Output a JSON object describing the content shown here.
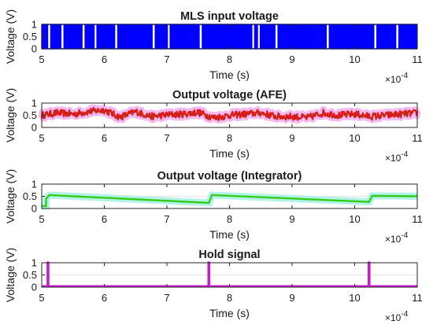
{
  "chart_data": [
    {
      "type": "line",
      "title": "MLS input voltage",
      "xlabel": "Time (s)",
      "ylabel": "Voltage (V)",
      "x_exponent_label": "×10",
      "x_exponent_power": "-4",
      "xlim": [
        5,
        11
      ],
      "ylim": [
        0,
        1
      ],
      "xticks": [
        "5",
        "6",
        "7",
        "8",
        "9",
        "10",
        "11"
      ],
      "yticks": [
        "0",
        "0.5",
        "1"
      ],
      "grid": false,
      "series": [
        {
          "color": "#0000ff",
          "signal": "binary-switching",
          "low": 0,
          "high": 1,
          "gaps_x": [
            5.12,
            5.33,
            5.67,
            5.86,
            6.19,
            6.79,
            7.03,
            7.54,
            8.38,
            8.47,
            8.75,
            9.57,
            10.33,
            10.68
          ]
        }
      ]
    },
    {
      "type": "line",
      "title": "Output voltage (AFE)",
      "xlabel": "Time (s)",
      "ylabel": "Voltage (V)",
      "x_exponent_label": "×10",
      "x_exponent_power": "-4",
      "xlim": [
        5,
        11
      ],
      "ylim": [
        0,
        1
      ],
      "xticks": [
        "5",
        "6",
        "7",
        "8",
        "9",
        "10",
        "11"
      ],
      "yticks": [
        "0",
        "0.5",
        "1"
      ],
      "grid": true,
      "series": [
        {
          "color": "#e6191a",
          "band_color": "#f7b8f0",
          "signal": "noisy",
          "x": [
            5,
            5.25,
            5.5,
            5.75,
            6,
            6.25,
            6.5,
            6.75,
            7,
            7.25,
            7.5,
            7.75,
            8,
            8.25,
            8.5,
            8.75,
            9,
            9.25,
            9.5,
            9.75,
            10,
            10.25,
            10.5,
            10.75,
            11
          ],
          "y": [
            0.5,
            0.6,
            0.55,
            0.65,
            0.72,
            0.42,
            0.65,
            0.45,
            0.52,
            0.55,
            0.62,
            0.4,
            0.5,
            0.55,
            0.6,
            0.45,
            0.45,
            0.4,
            0.6,
            0.5,
            0.55,
            0.45,
            0.5,
            0.55,
            0.6
          ]
        }
      ]
    },
    {
      "type": "line",
      "title": "Output voltage (Integrator)",
      "xlabel": "Time (s)",
      "ylabel": "Voltage (V)",
      "x_exponent_label": "×10",
      "x_exponent_power": "-4",
      "xlim": [
        5,
        11
      ],
      "ylim": [
        0,
        1
      ],
      "xticks": [
        "5",
        "6",
        "7",
        "8",
        "9",
        "10",
        "11"
      ],
      "yticks": [
        "0",
        "0.5",
        "1"
      ],
      "grid": true,
      "series": [
        {
          "color": "#33cc1a",
          "band_color": "#b3f2e6",
          "x": [
            5,
            5.07,
            5.07,
            5.12,
            7.67,
            7.67,
            7.72,
            10.23,
            10.23,
            10.28,
            11
          ],
          "y": [
            0.1,
            0.1,
            0.4,
            0.55,
            0.23,
            0.23,
            0.55,
            0.27,
            0.27,
            0.52,
            0.5
          ]
        }
      ]
    },
    {
      "type": "line",
      "title": "Hold signal",
      "xlabel": "Time (s)",
      "ylabel": "Voltage (V)",
      "x_exponent_label": "×10",
      "x_exponent_power": "-4",
      "xlim": [
        5,
        11
      ],
      "ylim": [
        0,
        1
      ],
      "xticks": [
        "5",
        "6",
        "7",
        "8",
        "9",
        "10",
        "11"
      ],
      "yticks": [
        "0",
        "0.5",
        "1"
      ],
      "grid": true,
      "series": [
        {
          "color": "#cc19cc",
          "signal": "pulses",
          "low": 0,
          "high": 1.05,
          "pulse_x": [
            5.1,
            7.67,
            10.23
          ]
        }
      ]
    }
  ]
}
